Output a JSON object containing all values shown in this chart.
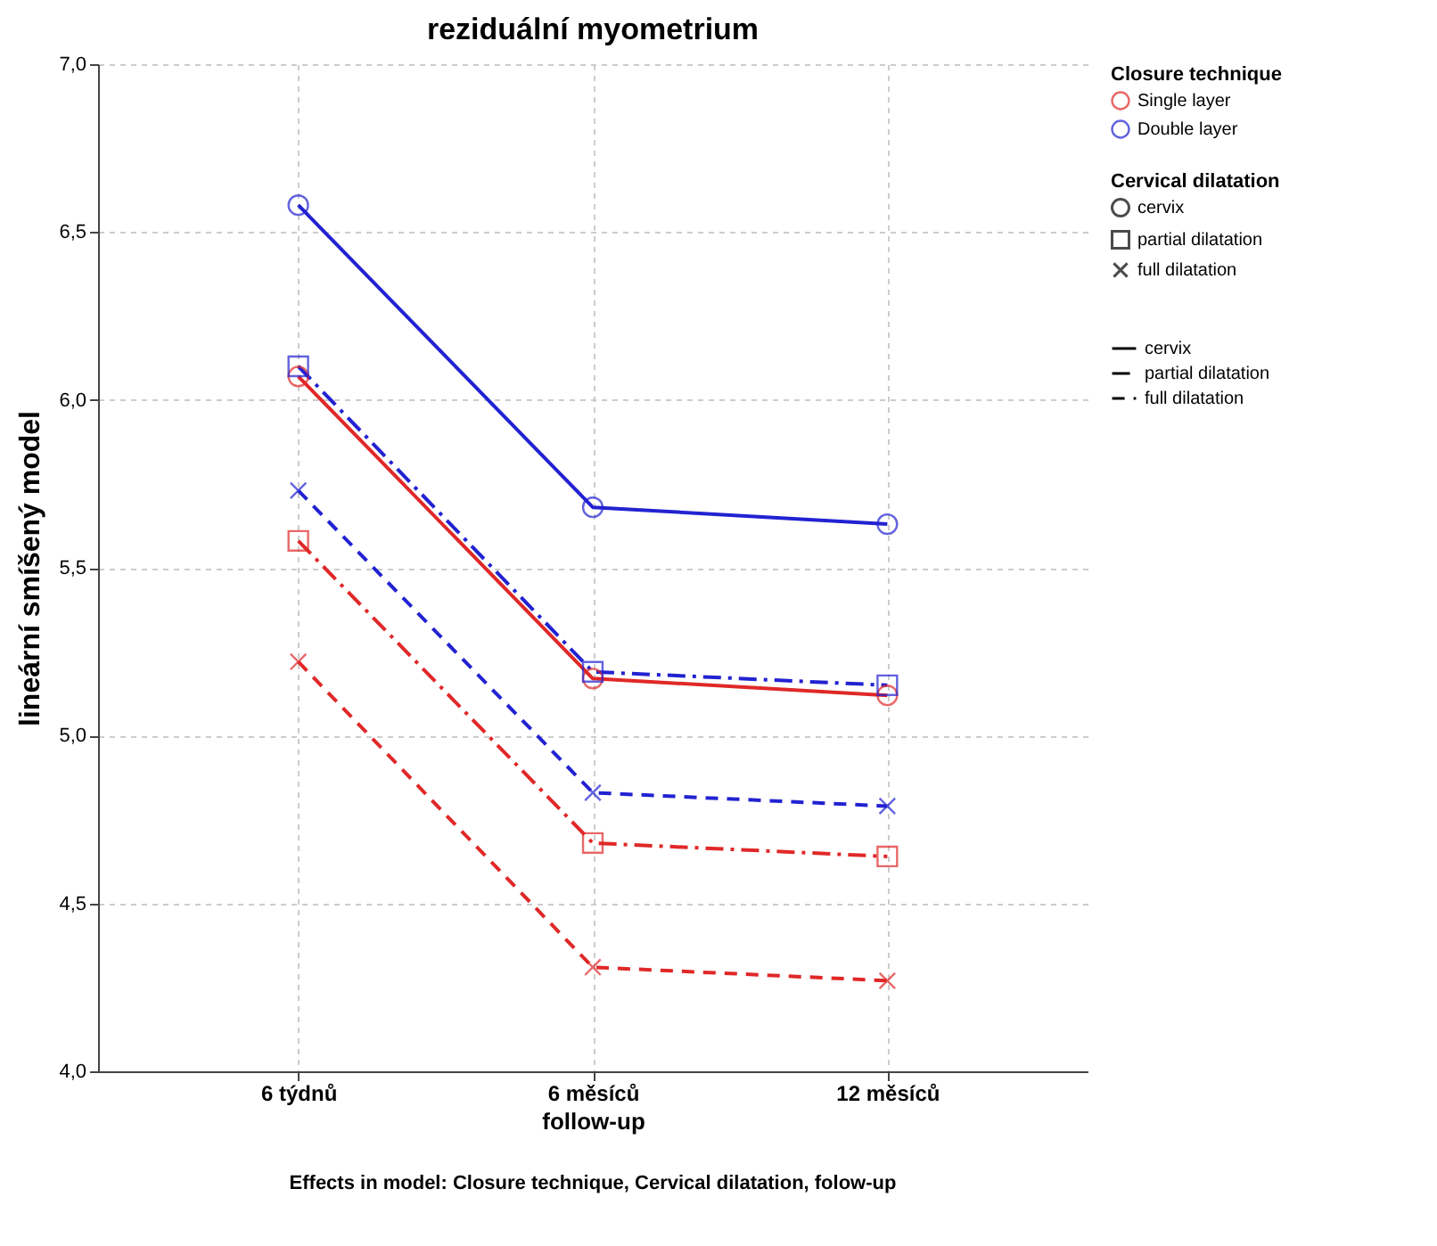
{
  "chart_data": {
    "type": "line",
    "title": "reziduální myometrium",
    "xlabel": "follow-up",
    "ylabel": "lineární smíšený model",
    "legend_title": [
      "Closure technique",
      "Cervical dilatation"
    ],
    "categories": [
      "6 týdnů",
      "6 měsíců",
      "12 měsíců"
    ],
    "ylim": [
      4.0,
      7.0
    ],
    "yticks": [
      {
        "value": 4.0,
        "label": "4,0"
      },
      {
        "value": 4.5,
        "label": "4,5"
      },
      {
        "value": 5.0,
        "label": "5,0"
      },
      {
        "value": 5.5,
        "label": "5,5"
      },
      {
        "value": 6.0,
        "label": "6,0"
      },
      {
        "value": 6.5,
        "label": "6,5"
      },
      {
        "value": 7.0,
        "label": "7,0"
      }
    ],
    "grid": true,
    "legend": "top right",
    "series": [
      {
        "name": "Single layer",
        "color": "#e02828",
        "marker": "circle",
        "line_style": "solid",
        "values": [
          6.07,
          5.17,
          5.12
        ]
      },
      {
        "color": "#e02828",
        "marker": "square",
        "line_style": "dashdot",
        "values": [
          5.58,
          4.68,
          4.64
        ]
      },
      {
        "color": "#e02828",
        "marker": "cross",
        "line_style": "dashed",
        "values": [
          5.22,
          4.31,
          4.27
        ]
      },
      {
        "name": "Double layer",
        "color": "#2222d2",
        "marker": "circle",
        "line_style": "solid",
        "values": [
          6.58,
          5.68,
          5.63
        ]
      },
      {
        "color": "#2222d2",
        "marker": "square",
        "line_style": "dashdot",
        "values": [
          6.1,
          5.19,
          5.15
        ]
      },
      {
        "color": "#2222d2",
        "marker": "cross",
        "line_style": "dashed",
        "values": [
          5.73,
          4.83,
          4.79
        ]
      }
    ],
    "annotations": [
      "Effects in model: Closure technique, Cervical dilatation, folow-up",
      "cervix",
      "partial dilatation",
      "full dilatation",
      "cervix",
      "partial dilatation",
      "full dilatation"
    ]
  }
}
